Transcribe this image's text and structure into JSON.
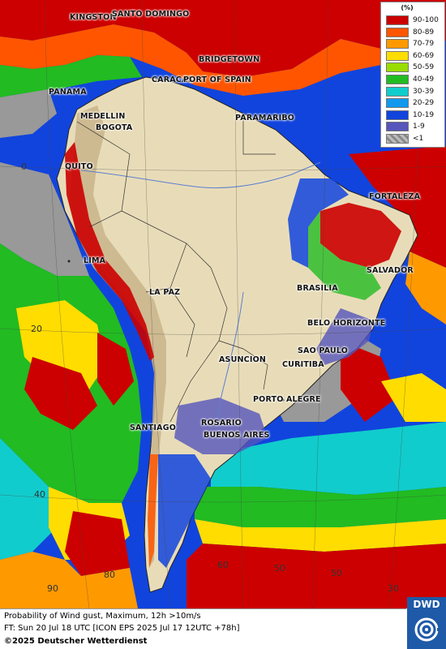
{
  "legend": {
    "unit": "(%)",
    "classes": [
      {
        "label": "90-100",
        "color": "#cc0000"
      },
      {
        "label": "80-89",
        "color": "#ff5500"
      },
      {
        "label": "70-79",
        "color": "#ff9900"
      },
      {
        "label": "60-69",
        "color": "#ffdd00"
      },
      {
        "label": "50-59",
        "color": "#99dd00"
      },
      {
        "label": "40-49",
        "color": "#22bb22"
      },
      {
        "label": "30-39",
        "color": "#11cccc"
      },
      {
        "label": "20-29",
        "color": "#1199ee"
      },
      {
        "label": "10-19",
        "color": "#1144dd"
      },
      {
        "label": "1-9",
        "color": "#5555bb"
      },
      {
        "label": "<1",
        "color": "#bbbbbb"
      }
    ]
  },
  "cities": [
    {
      "name": "KINGSTON"
    },
    {
      "name": "SANTO DOMINGO"
    },
    {
      "name": "BRIDGETOWN"
    },
    {
      "name": "PANAMA"
    },
    {
      "name": "CARACAS"
    },
    {
      "name": "PORT OF SPAIN"
    },
    {
      "name": "MEDELLIN"
    },
    {
      "name": "BOGOTA"
    },
    {
      "name": "PARAMARIBO"
    },
    {
      "name": "QUITO"
    },
    {
      "name": "FORTALEZA"
    },
    {
      "name": "LIMA"
    },
    {
      "name": "SALVADOR"
    },
    {
      "name": "BRASILIA"
    },
    {
      "name": "LA PAZ"
    },
    {
      "name": "BELO HORIZONTE"
    },
    {
      "name": "SAO PAULO"
    },
    {
      "name": "ASUNCION"
    },
    {
      "name": "CURITIBA"
    },
    {
      "name": "PORTO ALEGRE"
    },
    {
      "name": "ROSARIO"
    },
    {
      "name": "BUENOS AIRES"
    },
    {
      "name": "SANTIAGO"
    }
  ],
  "lat_labels": [
    "0",
    "20",
    "40"
  ],
  "lon_labels": [
    "90",
    "80",
    "60",
    "50",
    "50",
    "30"
  ],
  "caption": {
    "line1": "Probability of Wind gust, Maximum, 12h >10m/s",
    "line2": "FT: Sun 20 Jul 18 UTC [ICON EPS 2025 Jul 17 12UTC +78h]",
    "copyright": "©2025 Deutscher Wetterdienst"
  },
  "logo": {
    "text": "DWD"
  }
}
